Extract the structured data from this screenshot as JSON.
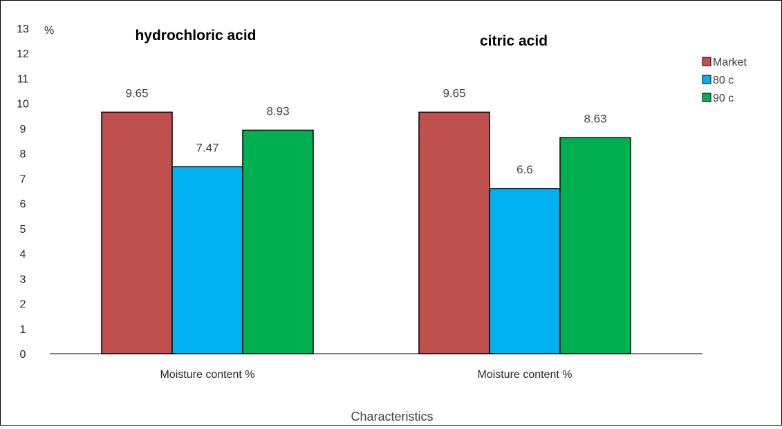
{
  "chart_data": {
    "type": "bar",
    "unit_label": "%",
    "xlabel": "Characteristics",
    "ylabel": "",
    "ylim": [
      0,
      13
    ],
    "yticks": [
      "0",
      "1",
      "2",
      "3",
      "4",
      "5",
      "6",
      "7",
      "8",
      "9",
      "10",
      "11",
      "12",
      "13"
    ],
    "grid": false,
    "legend_position": "right",
    "groups": [
      {
        "title": "hydrochloric acid",
        "category": "Moisture content %",
        "values": [
          9.65,
          7.47,
          8.93
        ],
        "value_labels": [
          "9.65",
          "7.47",
          "8.93"
        ]
      },
      {
        "title": "citric acid",
        "category": "Moisture content %",
        "values": [
          9.65,
          6.6,
          8.63
        ],
        "value_labels": [
          "9.65",
          "6.6",
          "8.63"
        ]
      }
    ],
    "series": [
      {
        "name": "Market",
        "color": "#C0504D"
      },
      {
        "name": "80 c",
        "color": "#00B0F0"
      },
      {
        "name": "90 c",
        "color": "#00B050"
      }
    ]
  }
}
